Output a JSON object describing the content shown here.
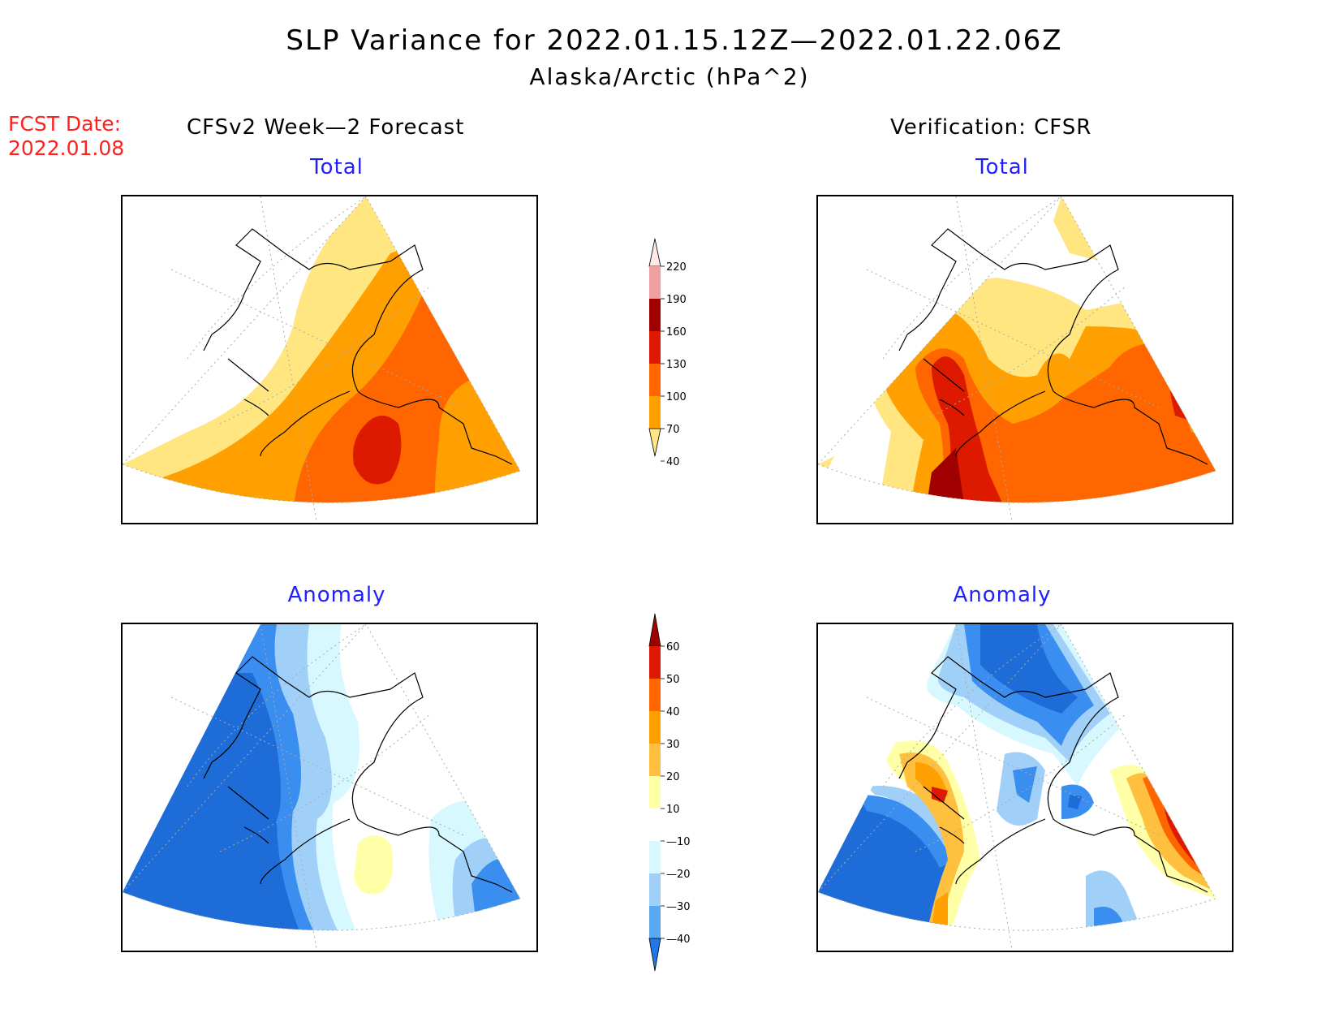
{
  "title": "SLP Variance for 2022.01.15.12Z—2022.01.22.06Z",
  "subtitle": "Alaska/Arctic (hPa^2)",
  "fcst_label": "FCST Date:",
  "fcst_date": "2022.01.08",
  "left_column_title": "CFSv2 Week—2 Forecast",
  "right_column_title": "Verification: CFSR",
  "panels": {
    "top_left": "Total",
    "top_right": "Total",
    "bottom_left": "Anomaly",
    "bottom_right": "Anomaly"
  },
  "colorbar_total": {
    "labels": [
      "220",
      "190",
      "160",
      "130",
      "100",
      "70",
      "40"
    ],
    "colors": [
      "#ffe8e8",
      "#f0a0a0",
      "#a00000",
      "#dd1a00",
      "#ff6600",
      "#ffa000",
      "#ffe680"
    ]
  },
  "colorbar_anomaly": {
    "labels": [
      "60",
      "50",
      "40",
      "30",
      "20",
      "10",
      "—10",
      "—20",
      "—30",
      "—40"
    ],
    "colors": [
      "#a00000",
      "#dd1a00",
      "#ff6600",
      "#ffa000",
      "#ffc040",
      "#ffffa8",
      "#ffffff",
      "#d8f8ff",
      "#a0d0f8",
      "#5aa8f0",
      "#1e78e8"
    ]
  },
  "legend_colors": {
    "lightyellow": "#ffe680",
    "orange": "#ffa000",
    "darkorange": "#ff6600",
    "red": "#dd1a00",
    "darkred": "#a00000",
    "pink": "#f0a0a0",
    "blue_dark": "#1e6cd8",
    "blue": "#3a8ef0",
    "blue_light": "#a0d0f8",
    "blue_pale": "#d8f8ff",
    "yellow_pale": "#ffffa8"
  }
}
